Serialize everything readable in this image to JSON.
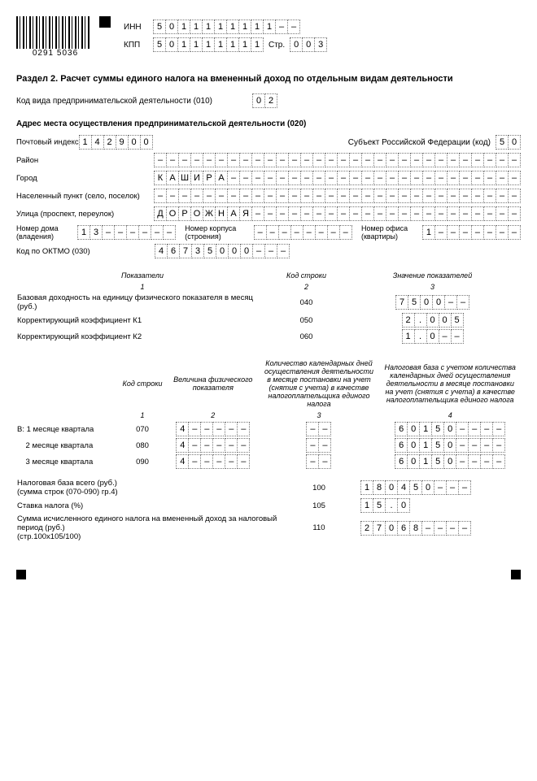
{
  "barcode_num": "0291 5036",
  "header": {
    "inn_label": "ИНН",
    "inn": [
      "5",
      "0",
      "1",
      "1",
      "1",
      "1",
      "1",
      "1",
      "1",
      "1",
      "–",
      "–"
    ],
    "kpp_label": "КПП",
    "kpp": [
      "5",
      "0",
      "1",
      "1",
      "1",
      "1",
      "1",
      "1",
      "1"
    ],
    "page_label": "Стр.",
    "page": [
      "0",
      "0",
      "3"
    ]
  },
  "title": "Раздел 2. Расчет суммы единого налога на вмененный доход по отдельным видам деятельности",
  "line010": {
    "label": "Код вида предпринимательской деятельности (010)",
    "cells": [
      "0",
      "2"
    ]
  },
  "addrTitle": "Адрес места осуществления предпринимательской деятельности (020)",
  "addr": {
    "postal": {
      "label": "Почтовый индекс",
      "cells": [
        "1",
        "4",
        "2",
        "9",
        "0",
        "0"
      ]
    },
    "subject": {
      "label": "Субъект Российской Федерации (код)",
      "cells": [
        "5",
        "0"
      ]
    },
    "rayon": {
      "label": "Район",
      "len": 30
    },
    "city": {
      "label": "Город",
      "val": "КАШИРА",
      "len": 30
    },
    "town": {
      "label": "Населенный пункт (село, поселок)",
      "len": 30
    },
    "street": {
      "label": "Улица (проспект, переулок)",
      "val": "ДОРОЖНАЯ",
      "len": 30
    },
    "house": {
      "label": "Номер дома (владения)",
      "val": "13",
      "len": 8
    },
    "korpus": {
      "label": "Номер корпуса (строения)",
      "len": 8
    },
    "office": {
      "label": "Номер офиса (квартиры)",
      "val": "1",
      "len": 8
    }
  },
  "oktmo": {
    "label": "Код по ОКТМО (030)",
    "cells": [
      "4",
      "6",
      "7",
      "3",
      "5",
      "0",
      "0",
      "0",
      "–",
      "–",
      "–"
    ]
  },
  "table1": {
    "headers": [
      "Показатели",
      "Код строки",
      "Значение показателей"
    ],
    "nums": [
      "1",
      "2",
      "3"
    ],
    "rows": [
      {
        "label": "Базовая доходность на единицу физического показателя в месяц (руб.)",
        "code": "040",
        "cells": [
          "7",
          "5",
          "0",
          "0",
          "–",
          "–"
        ]
      },
      {
        "label": "Корректирующий коэффициент К1",
        "code": "050",
        "cells": [
          "2",
          ".",
          "0",
          "0",
          "5"
        ]
      },
      {
        "label": "Корректирующий коэффициент К2",
        "code": "060",
        "cells": [
          "1",
          ".",
          "0",
          "–",
          "–"
        ]
      }
    ]
  },
  "table2": {
    "headers": [
      "Код строки",
      "Величина физического показателя",
      "Количество календарных дней осуществления деятельности в месяце постановки на учет (снятия с учета) в качестве налогоплательщика единого налога",
      "Налоговая база с учетом количества календарных дней осуществления деятельности в месяце постановки на учет (снятия с учета) в качестве налогоплательщика единого налога"
    ],
    "nums": [
      "1",
      "2",
      "3",
      "4"
    ],
    "prefix": "В:",
    "rows": [
      {
        "label": "1 месяце квартала",
        "code": "070",
        "phys": [
          "4",
          "–",
          "–",
          "–",
          "–",
          "–"
        ],
        "days": [
          "–",
          "–"
        ],
        "base": [
          "6",
          "0",
          "1",
          "5",
          "0",
          "–",
          "–",
          "–",
          "–"
        ]
      },
      {
        "label": "2 месяце квартала",
        "code": "080",
        "phys": [
          "4",
          "–",
          "–",
          "–",
          "–",
          "–"
        ],
        "days": [
          "–",
          "–"
        ],
        "base": [
          "6",
          "0",
          "1",
          "5",
          "0",
          "–",
          "–",
          "–",
          "–"
        ]
      },
      {
        "label": "3 месяце квартала",
        "code": "090",
        "phys": [
          "4",
          "–",
          "–",
          "–",
          "–",
          "–"
        ],
        "days": [
          "–",
          "–"
        ],
        "base": [
          "6",
          "0",
          "1",
          "5",
          "0",
          "–",
          "–",
          "–",
          "–"
        ]
      }
    ]
  },
  "totals": [
    {
      "label": "Налоговая база всего (руб.)\n(сумма строк (070-090) гр.4)",
      "code": "100",
      "cells": [
        "1",
        "8",
        "0",
        "4",
        "5",
        "0",
        "–",
        "–",
        "–"
      ]
    },
    {
      "label": "Ставка налога (%)",
      "code": "105",
      "cells": [
        "1",
        "5",
        ".",
        "0"
      ]
    },
    {
      "label": "Сумма исчисленного единого налога на вмененный доход за налоговый период (руб.)\n(стр.100х105/100)",
      "code": "110",
      "cells": [
        "2",
        "7",
        "0",
        "6",
        "8",
        "–",
        "–",
        "–",
        "–"
      ]
    }
  ]
}
